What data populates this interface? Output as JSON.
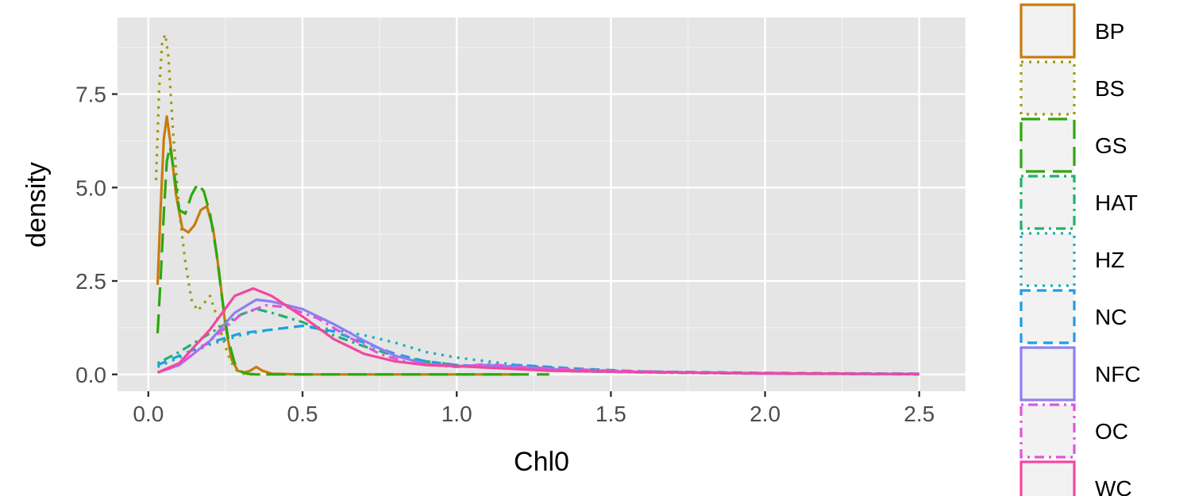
{
  "chart_data": {
    "type": "line",
    "subtype": "density",
    "title": "",
    "xlabel": "Chl0",
    "ylabel": "density",
    "xlim": [
      -0.1,
      2.65
    ],
    "ylim": [
      -0.45,
      9.55
    ],
    "x_ticks": [
      0.0,
      0.5,
      1.0,
      1.5,
      2.0,
      2.5
    ],
    "x_tick_labels": [
      "0.0",
      "0.5",
      "1.0",
      "1.5",
      "2.0",
      "2.5"
    ],
    "y_ticks": [
      0.0,
      2.5,
      5.0,
      7.5
    ],
    "y_tick_labels": [
      "0.0",
      "2.5",
      "5.0",
      "7.5"
    ],
    "grid": true,
    "legend_position": "right",
    "series": [
      {
        "name": "BP",
        "color": "#C77C0F",
        "dash": "solid",
        "points": [
          [
            0.03,
            2.4
          ],
          [
            0.04,
            4.5
          ],
          [
            0.05,
            6.3
          ],
          [
            0.06,
            6.9
          ],
          [
            0.07,
            6.3
          ],
          [
            0.09,
            4.8
          ],
          [
            0.11,
            3.9
          ],
          [
            0.13,
            3.8
          ],
          [
            0.15,
            4.0
          ],
          [
            0.17,
            4.4
          ],
          [
            0.19,
            4.5
          ],
          [
            0.21,
            3.9
          ],
          [
            0.23,
            2.7
          ],
          [
            0.25,
            1.3
          ],
          [
            0.27,
            0.4
          ],
          [
            0.29,
            0.1
          ],
          [
            0.31,
            0.05
          ],
          [
            0.33,
            0.1
          ],
          [
            0.35,
            0.2
          ],
          [
            0.37,
            0.1
          ],
          [
            0.4,
            0.02
          ],
          [
            0.5,
            0.0
          ],
          [
            1.0,
            0.0
          ],
          [
            1.2,
            0.0
          ]
        ]
      },
      {
        "name": "BS",
        "color": "#9E9A06",
        "dash": "dotted",
        "points": [
          [
            0.025,
            5.2
          ],
          [
            0.035,
            7.6
          ],
          [
            0.045,
            8.9
          ],
          [
            0.055,
            9.1
          ],
          [
            0.065,
            8.5
          ],
          [
            0.08,
            6.5
          ],
          [
            0.1,
            4.4
          ],
          [
            0.12,
            3.0
          ],
          [
            0.14,
            2.0
          ],
          [
            0.16,
            1.7
          ],
          [
            0.18,
            1.9
          ],
          [
            0.2,
            2.1
          ],
          [
            0.22,
            1.6
          ],
          [
            0.24,
            1.0
          ],
          [
            0.26,
            0.5
          ],
          [
            0.28,
            0.15
          ],
          [
            0.3,
            0.03
          ],
          [
            0.33,
            0.0
          ],
          [
            0.8,
            0.0
          ],
          [
            1.2,
            0.0
          ]
        ]
      },
      {
        "name": "GS",
        "color": "#2EA70E",
        "dash": "longdash",
        "points": [
          [
            0.03,
            1.1
          ],
          [
            0.04,
            2.6
          ],
          [
            0.05,
            4.3
          ],
          [
            0.06,
            5.7
          ],
          [
            0.07,
            6.1
          ],
          [
            0.08,
            5.6
          ],
          [
            0.1,
            4.4
          ],
          [
            0.12,
            4.3
          ],
          [
            0.14,
            4.8
          ],
          [
            0.16,
            5.1
          ],
          [
            0.18,
            4.9
          ],
          [
            0.2,
            4.3
          ],
          [
            0.22,
            3.3
          ],
          [
            0.24,
            2.0
          ],
          [
            0.26,
            0.9
          ],
          [
            0.28,
            0.3
          ],
          [
            0.3,
            0.08
          ],
          [
            0.32,
            0.02
          ],
          [
            0.35,
            0.0
          ],
          [
            0.8,
            0.0
          ],
          [
            1.3,
            0.0
          ]
        ]
      },
      {
        "name": "HAT",
        "color": "#1FB26E",
        "dash": "dotdash",
        "points": [
          [
            0.03,
            0.3
          ],
          [
            0.1,
            0.6
          ],
          [
            0.2,
            1.1
          ],
          [
            0.3,
            1.6
          ],
          [
            0.35,
            1.75
          ],
          [
            0.4,
            1.65
          ],
          [
            0.5,
            1.4
          ],
          [
            0.6,
            1.05
          ],
          [
            0.7,
            0.75
          ],
          [
            0.8,
            0.5
          ],
          [
            0.9,
            0.35
          ],
          [
            1.0,
            0.25
          ],
          [
            1.2,
            0.15
          ],
          [
            1.4,
            0.08
          ],
          [
            1.7,
            0.04
          ],
          [
            2.0,
            0.02
          ],
          [
            2.3,
            0.01
          ],
          [
            2.5,
            0.0
          ]
        ]
      },
      {
        "name": "HZ",
        "color": "#16B0B4",
        "dash": "dotted",
        "points": [
          [
            0.03,
            0.2
          ],
          [
            0.1,
            0.45
          ],
          [
            0.2,
            0.8
          ],
          [
            0.3,
            1.05
          ],
          [
            0.4,
            1.2
          ],
          [
            0.5,
            1.3
          ],
          [
            0.6,
            1.2
          ],
          [
            0.7,
            1.05
          ],
          [
            0.8,
            0.85
          ],
          [
            0.9,
            0.6
          ],
          [
            1.0,
            0.45
          ],
          [
            1.2,
            0.25
          ],
          [
            1.4,
            0.12
          ],
          [
            1.6,
            0.07
          ],
          [
            2.0,
            0.03
          ],
          [
            2.5,
            0.02
          ]
        ]
      },
      {
        "name": "NC",
        "color": "#1E9EE6",
        "dash": "dashed",
        "points": [
          [
            0.03,
            0.25
          ],
          [
            0.1,
            0.5
          ],
          [
            0.2,
            0.85
          ],
          [
            0.3,
            1.1
          ],
          [
            0.4,
            1.2
          ],
          [
            0.5,
            1.3
          ],
          [
            0.6,
            1.15
          ],
          [
            0.7,
            0.85
          ],
          [
            0.8,
            0.55
          ],
          [
            0.9,
            0.35
          ],
          [
            1.0,
            0.25
          ],
          [
            1.1,
            0.22
          ],
          [
            1.2,
            0.25
          ],
          [
            1.4,
            0.15
          ],
          [
            1.6,
            0.08
          ],
          [
            2.0,
            0.04
          ],
          [
            2.5,
            0.02
          ]
        ]
      },
      {
        "name": "NFC",
        "color": "#8F7FF0",
        "dash": "solid",
        "points": [
          [
            0.03,
            0.05
          ],
          [
            0.1,
            0.25
          ],
          [
            0.2,
            0.9
          ],
          [
            0.28,
            1.65
          ],
          [
            0.35,
            2.0
          ],
          [
            0.4,
            1.95
          ],
          [
            0.5,
            1.75
          ],
          [
            0.6,
            1.35
          ],
          [
            0.7,
            0.9
          ],
          [
            0.8,
            0.5
          ],
          [
            0.9,
            0.28
          ],
          [
            1.0,
            0.22
          ],
          [
            1.1,
            0.25
          ],
          [
            1.2,
            0.2
          ],
          [
            1.4,
            0.1
          ],
          [
            1.7,
            0.05
          ],
          [
            2.0,
            0.02
          ],
          [
            2.5,
            0.01
          ]
        ]
      },
      {
        "name": "OC",
        "color": "#DF55E0",
        "dash": "dotdash",
        "points": [
          [
            0.03,
            0.05
          ],
          [
            0.1,
            0.25
          ],
          [
            0.2,
            0.9
          ],
          [
            0.3,
            1.6
          ],
          [
            0.38,
            1.85
          ],
          [
            0.45,
            1.8
          ],
          [
            0.55,
            1.5
          ],
          [
            0.65,
            1.0
          ],
          [
            0.75,
            0.55
          ],
          [
            0.85,
            0.3
          ],
          [
            1.0,
            0.2
          ],
          [
            1.1,
            0.28
          ],
          [
            1.2,
            0.2
          ],
          [
            1.5,
            0.1
          ],
          [
            1.8,
            0.05
          ],
          [
            2.2,
            0.02
          ],
          [
            2.5,
            0.01
          ]
        ]
      },
      {
        "name": "WC",
        "color": "#F2479E",
        "dash": "solid",
        "points": [
          [
            0.03,
            0.05
          ],
          [
            0.1,
            0.3
          ],
          [
            0.2,
            1.2
          ],
          [
            0.28,
            2.1
          ],
          [
            0.34,
            2.3
          ],
          [
            0.4,
            2.1
          ],
          [
            0.5,
            1.55
          ],
          [
            0.6,
            0.95
          ],
          [
            0.7,
            0.55
          ],
          [
            0.8,
            0.35
          ],
          [
            0.9,
            0.25
          ],
          [
            1.0,
            0.22
          ],
          [
            1.1,
            0.18
          ],
          [
            1.3,
            0.1
          ],
          [
            1.6,
            0.06
          ],
          [
            2.0,
            0.03
          ],
          [
            2.5,
            0.01
          ]
        ]
      }
    ]
  }
}
